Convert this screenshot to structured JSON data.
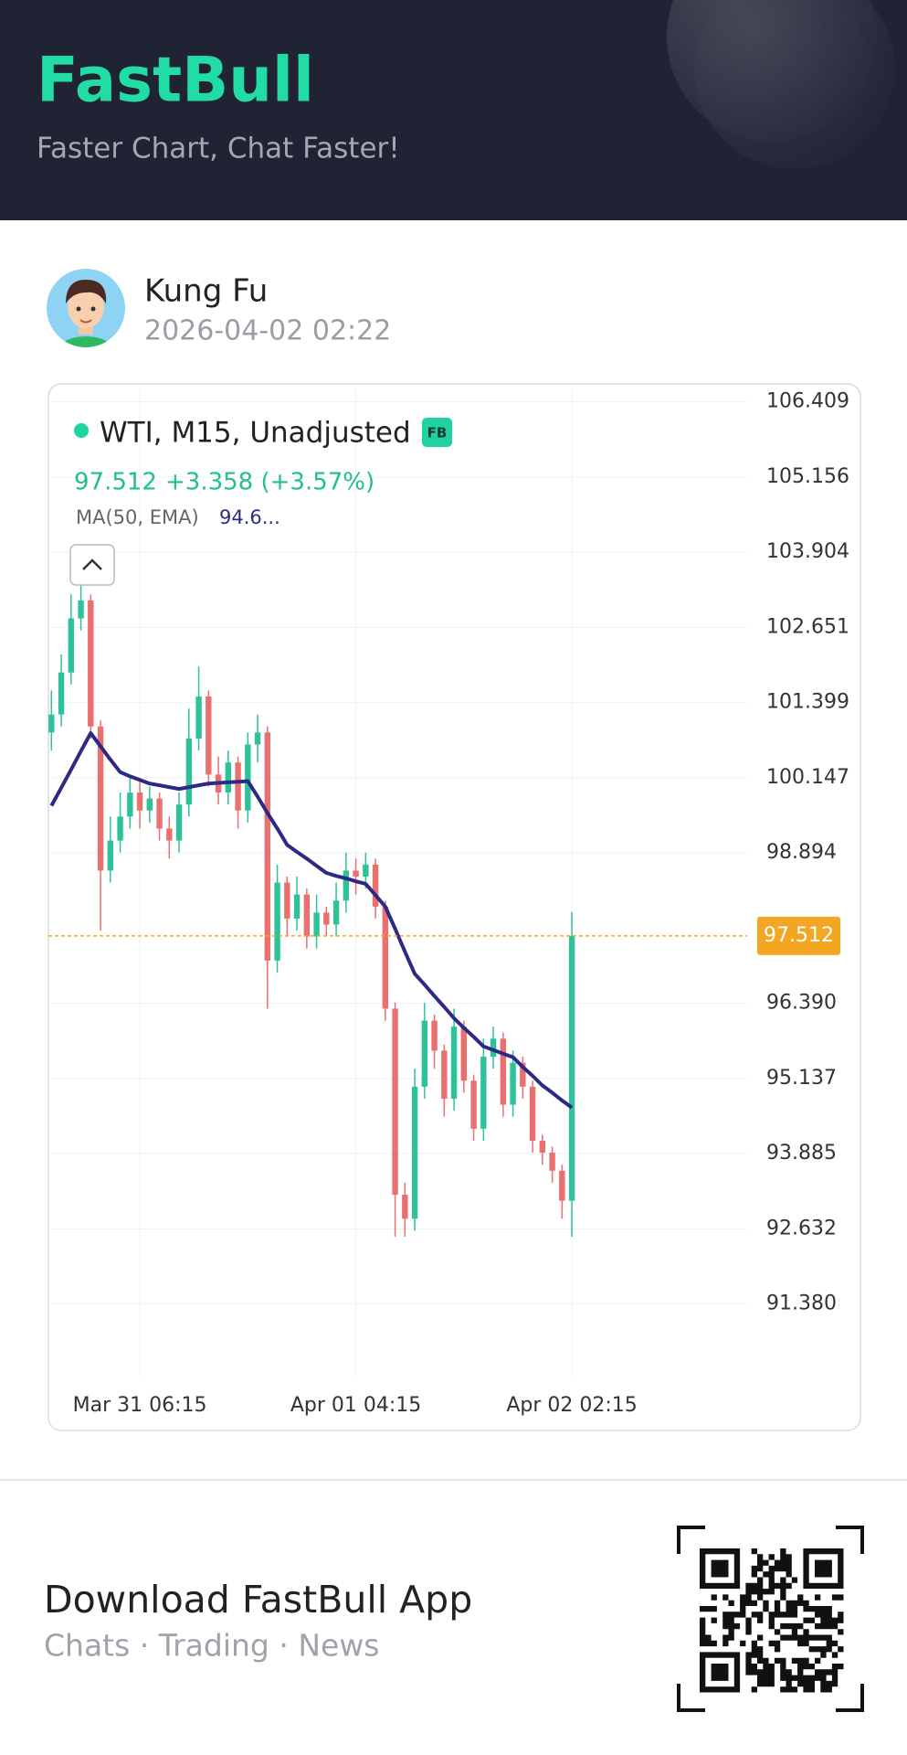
{
  "header": {
    "logo": "FastBull",
    "tagline": "Faster Chart, Chat Faster!"
  },
  "user": {
    "name": "Kung Fu",
    "timestamp": "2026-04-02 02:22"
  },
  "chart_data": {
    "type": "candlestick",
    "title": "WTI, M15, Unadjusted",
    "badge": "FB",
    "last_price": 97.512,
    "change": "+3.358 (+3.57%)",
    "up_color": "#2ec29b",
    "down_color": "#e9706f",
    "last_price_color": "#f2a622",
    "grid": true,
    "categories": [
      null,
      null,
      null,
      null,
      null,
      null,
      null,
      null,
      null,
      "Mar 31 06:15",
      null,
      null,
      null,
      null,
      null,
      null,
      null,
      null,
      null,
      null,
      null,
      null,
      null,
      null,
      null,
      null,
      null,
      null,
      null,
      null,
      null,
      "Apr 01 04:15",
      null,
      null,
      null,
      null,
      null,
      null,
      null,
      null,
      null,
      null,
      null,
      null,
      null,
      null,
      null,
      null,
      null,
      null,
      null,
      null,
      null,
      "Apr 02 02:15"
    ],
    "open": [
      100.9,
      101.2,
      101.9,
      102.8,
      103.1,
      101.0,
      98.6,
      99.1,
      99.5,
      99.9,
      99.6,
      99.8,
      99.3,
      99.1,
      99.7,
      100.8,
      101.5,
      100.2,
      99.9,
      100.4,
      99.6,
      100.7,
      100.9,
      97.1,
      98.4,
      97.8,
      98.2,
      97.5,
      97.9,
      97.7,
      98.1,
      98.6,
      98.5,
      98.7,
      98.0,
      96.3,
      93.2,
      92.8,
      95.0,
      96.1,
      95.6,
      94.8,
      96.0,
      95.1,
      94.3,
      95.5,
      95.8,
      94.7,
      95.4,
      95.0,
      94.1,
      93.9,
      93.6,
      93.1
    ],
    "high": [
      101.6,
      102.2,
      103.2,
      103.4,
      103.2,
      101.1,
      99.5,
      99.9,
      100.2,
      100.1,
      100.0,
      99.9,
      99.5,
      99.9,
      101.3,
      102.0,
      101.6,
      100.5,
      100.6,
      100.5,
      100.9,
      101.2,
      101.0,
      98.7,
      98.5,
      98.5,
      98.3,
      98.2,
      98.0,
      98.4,
      98.9,
      98.8,
      98.9,
      98.8,
      98.1,
      96.4,
      93.4,
      95.3,
      96.4,
      96.2,
      95.7,
      96.3,
      96.1,
      95.2,
      95.8,
      96.0,
      95.9,
      95.6,
      95.5,
      95.1,
      94.2,
      94.0,
      93.7,
      97.91
    ],
    "low": [
      100.6,
      101.0,
      101.7,
      102.6,
      100.8,
      97.6,
      98.4,
      98.9,
      99.3,
      99.3,
      99.4,
      99.1,
      98.8,
      98.9,
      99.5,
      100.6,
      100.0,
      99.7,
      99.7,
      99.3,
      99.4,
      100.4,
      96.3,
      96.9,
      97.5,
      97.6,
      97.3,
      97.3,
      97.5,
      97.5,
      97.9,
      98.2,
      98.3,
      97.8,
      96.1,
      92.5,
      92.5,
      92.6,
      94.8,
      95.3,
      94.5,
      94.6,
      94.9,
      94.1,
      94.1,
      95.3,
      94.5,
      94.5,
      94.8,
      93.9,
      93.7,
      93.4,
      92.8,
      92.5
    ],
    "close": [
      101.2,
      101.9,
      102.8,
      103.1,
      101.0,
      98.6,
      99.1,
      99.5,
      99.9,
      99.6,
      99.8,
      99.3,
      99.1,
      99.7,
      100.8,
      101.5,
      100.2,
      99.9,
      100.4,
      99.6,
      100.7,
      100.9,
      97.1,
      98.4,
      97.8,
      98.2,
      97.5,
      97.9,
      97.7,
      98.1,
      98.6,
      98.5,
      98.7,
      98.0,
      96.3,
      93.2,
      92.8,
      95.0,
      96.1,
      95.6,
      94.8,
      96.0,
      95.1,
      94.3,
      95.5,
      95.8,
      94.7,
      95.4,
      95.0,
      94.1,
      93.9,
      93.6,
      93.1,
      97.512
    ],
    "ma": {
      "name": "MA(50, EMA)",
      "value_label": "94.6...",
      "color": "#2c2a85",
      "values": [
        99.68,
        99.98,
        100.28,
        100.59,
        100.89,
        100.67,
        100.45,
        100.24,
        100.17,
        100.11,
        100.05,
        100.02,
        99.99,
        99.96,
        99.99,
        100.02,
        100.05,
        100.06,
        100.07,
        100.08,
        100.09,
        99.83,
        99.56,
        99.3,
        99.03,
        98.91,
        98.8,
        98.68,
        98.56,
        98.51,
        98.47,
        98.42,
        98.38,
        98.19,
        98.0,
        97.63,
        97.25,
        96.88,
        96.7,
        96.51,
        96.33,
        96.14,
        95.98,
        95.83,
        95.67,
        95.61,
        95.55,
        95.49,
        95.33,
        95.18,
        95.02,
        94.9,
        94.77,
        94.65
      ]
    },
    "ylim": [
      90.17,
      106.67
    ],
    "yticks": [
      106.409,
      105.156,
      103.904,
      102.651,
      101.399,
      100.147,
      98.894,
      {
        "value": 96.39,
        "label": "96.390"
      },
      95.137,
      93.885,
      92.632,
      {
        "value": 91.38,
        "label": "91.380"
      }
    ]
  },
  "footer": {
    "title": "Download FastBull App",
    "subtitle": "Chats · Trading · News"
  }
}
